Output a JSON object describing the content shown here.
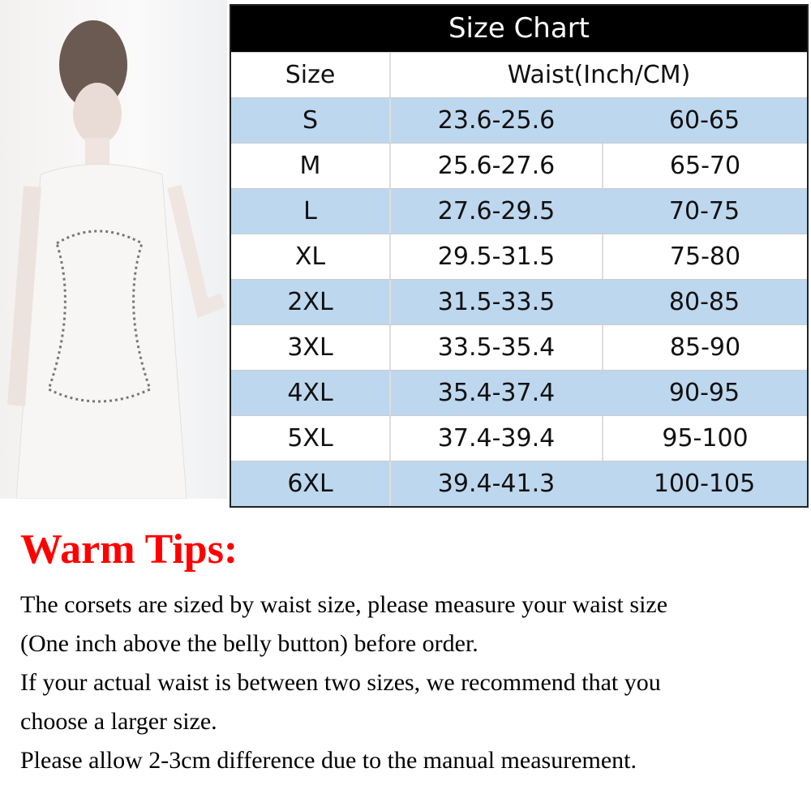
{
  "table": {
    "title": "Size Chart",
    "header": {
      "size": "Size",
      "waist": "Waist(Inch/CM)"
    },
    "rows": [
      {
        "size": "S",
        "inch": "23.6-25.6",
        "cm": "60-65"
      },
      {
        "size": "M",
        "inch": "25.6-27.6",
        "cm": "65-70"
      },
      {
        "size": "L",
        "inch": "27.6-29.5",
        "cm": "70-75"
      },
      {
        "size": "XL",
        "inch": "29.5-31.5",
        "cm": "75-80"
      },
      {
        "size": "2XL",
        "inch": "31.5-33.5",
        "cm": "80-85"
      },
      {
        "size": "3XL",
        "inch": "33.5-35.4",
        "cm": "85-90"
      },
      {
        "size": "4XL",
        "inch": "35.4-37.4",
        "cm": "90-95"
      },
      {
        "size": "5XL",
        "inch": "37.4-39.4",
        "cm": "95-100"
      },
      {
        "size": "6XL",
        "inch": "39.4-41.3",
        "cm": "100-105"
      }
    ]
  },
  "tips": {
    "heading": "Warm Tips:",
    "lines": [
      "The corsets are sized by waist size, please measure your waist size",
      "(One inch above the belly button) before order.",
      "If your actual waist is between two sizes, we recommend that you",
      "choose a larger size.",
      "Please allow 2-3cm difference due to the manual measurement."
    ]
  },
  "colors": {
    "stripe": "#bdd7ee",
    "heading": "#ff0000"
  }
}
